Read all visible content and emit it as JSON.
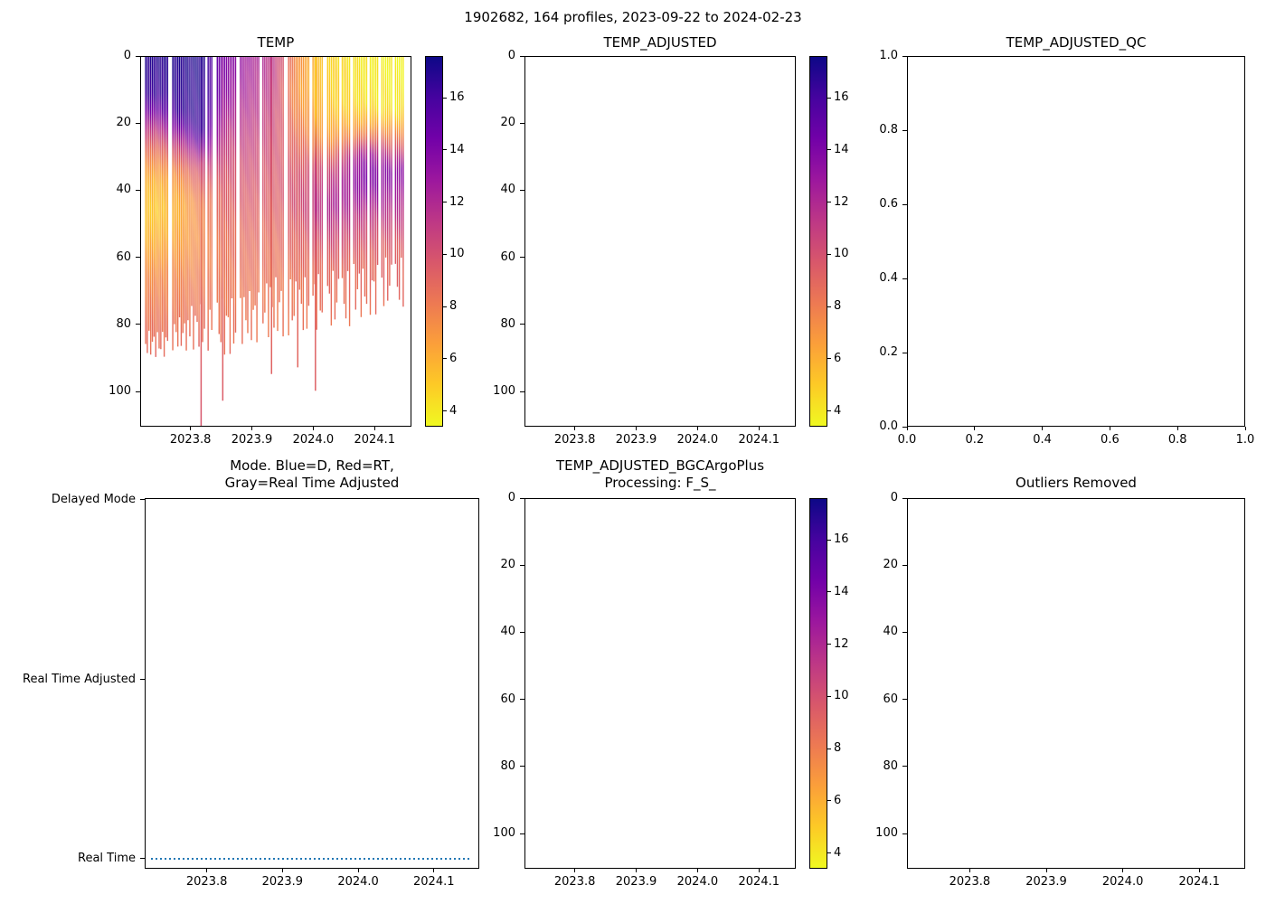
{
  "figure": {
    "suptitle": "1902682, 164 profiles, 2023-09-22 to 2024-02-23"
  },
  "colors": {
    "background": "#ffffff",
    "axis": "#000000",
    "mode_line": "#1f77b4",
    "plasma": [
      "#0d0887",
      "#46039f",
      "#7201a8",
      "#9c179e",
      "#bd3786",
      "#d8576b",
      "#ed7953",
      "#fb9f3a",
      "#fdca26",
      "#f0f921"
    ]
  },
  "panels": {
    "temp": {
      "title": "TEMP",
      "xtick_labels": [
        "2023.8",
        "2023.9",
        "2024.0",
        "2024.1"
      ],
      "ytick_labels": [
        "0",
        "20",
        "40",
        "60",
        "80",
        "100"
      ],
      "colorbar_tick_labels": [
        "16",
        "14",
        "12",
        "10",
        "8",
        "6",
        "4"
      ]
    },
    "temp_adjusted": {
      "title": "TEMP_ADJUSTED",
      "xtick_labels": [
        "2023.8",
        "2023.9",
        "2024.0",
        "2024.1"
      ],
      "ytick_labels": [
        "0",
        "20",
        "40",
        "60",
        "80",
        "100"
      ],
      "colorbar_tick_labels": [
        "16",
        "14",
        "12",
        "10",
        "8",
        "6",
        "4"
      ]
    },
    "temp_adjusted_qc": {
      "title": "TEMP_ADJUSTED_QC",
      "xtick_labels": [
        "0.0",
        "0.2",
        "0.4",
        "0.6",
        "0.8",
        "1.0"
      ],
      "ytick_labels": [
        "1.0",
        "0.8",
        "0.6",
        "0.4",
        "0.2",
        "0.0"
      ]
    },
    "mode": {
      "title_line1": "Mode. Blue=D, Red=RT,",
      "title_line2": "Gray=Real Time Adjusted",
      "xtick_labels": [
        "2023.8",
        "2023.9",
        "2024.0",
        "2024.1"
      ],
      "ytick_labels": [
        "Delayed Mode",
        "Real Time Adjusted",
        "Real Time"
      ]
    },
    "bgc": {
      "title_line1": "TEMP_ADJUSTED_BGCArgoPlus",
      "title_line2": "Processing: F_S_",
      "xtick_labels": [
        "2023.8",
        "2023.9",
        "2024.0",
        "2024.1"
      ],
      "ytick_labels": [
        "0",
        "20",
        "40",
        "60",
        "80",
        "100"
      ],
      "colorbar_tick_labels": [
        "16",
        "14",
        "12",
        "10",
        "8",
        "6",
        "4"
      ]
    },
    "outliers": {
      "title": "Outliers Removed",
      "xtick_labels": [
        "2023.8",
        "2023.9",
        "2024.0",
        "2024.1"
      ],
      "ytick_labels": [
        "0",
        "20",
        "40",
        "60",
        "80",
        "100"
      ]
    }
  },
  "chart_data": [
    {
      "panel": "temp",
      "type": "heatmap",
      "title": "TEMP",
      "platform": "1902682",
      "n_profiles": 164,
      "date_range": [
        "2023-09-22",
        "2024-02-23"
      ],
      "xlim": [
        2023.718,
        2024.16
      ],
      "ylim": [
        0,
        110.5
      ],
      "y_inverted": true,
      "xticks": [
        2023.8,
        2023.9,
        2024.0,
        2024.1
      ],
      "yticks": [
        0,
        20,
        40,
        60,
        80,
        100
      ],
      "colorbar": {
        "vmin": 3.4,
        "vmax": 17.6,
        "ticks": [
          16,
          14,
          12,
          10,
          8,
          6,
          4
        ],
        "colormap": "plasma_r"
      },
      "profile_sections": [
        {
          "t_start": 2023.7255,
          "t_end": 2023.7615,
          "count": 14,
          "zmax_range": [
            82,
            90
          ],
          "temp_vs_depth": [
            [
              0,
              16.9
            ],
            [
              13,
              16.2
            ],
            [
              20,
              12.0
            ],
            [
              27,
              8.8
            ],
            [
              36,
              6.0
            ],
            [
              46,
              5.0
            ],
            [
              56,
              6.0
            ],
            [
              66,
              7.4
            ],
            [
              78,
              8.3
            ],
            [
              90,
              8.8
            ]
          ]
        },
        {
          "t_start": 2023.77,
          "t_end": 2023.795,
          "count": 10,
          "zmax_range": [
            78,
            88
          ],
          "temp_vs_depth": [
            [
              0,
              17.0
            ],
            [
              18,
              16.4
            ],
            [
              26,
              11.2
            ],
            [
              35,
              7.4
            ],
            [
              45,
              5.9
            ],
            [
              56,
              6.6
            ],
            [
              68,
              7.8
            ],
            [
              82,
              8.5
            ],
            [
              90,
              8.8
            ]
          ]
        },
        {
          "t_start": 2023.798,
          "t_end": 2023.834,
          "count": 13,
          "zmax_range": [
            74,
            88
          ],
          "temp_vs_depth": [
            [
              0,
              17.1
            ],
            [
              23,
              16.6
            ],
            [
              32,
              10.8
            ],
            [
              43,
              7.9
            ],
            [
              54,
              7.4
            ],
            [
              66,
              7.9
            ],
            [
              80,
              8.6
            ],
            [
              92,
              9.0
            ]
          ]
        },
        {
          "t_start": 2023.843,
          "t_end": 2023.873,
          "count": 11,
          "zmax_range": [
            72,
            90
          ],
          "temp_vs_depth": [
            [
              0,
              14.0
            ],
            [
              12,
              13.2
            ],
            [
              24,
              11.0
            ],
            [
              38,
              9.6
            ],
            [
              52,
              8.7
            ],
            [
              66,
              8.2
            ],
            [
              80,
              8.4
            ],
            [
              92,
              8.8
            ]
          ]
        },
        {
          "t_start": 2023.881,
          "t_end": 2023.911,
          "count": 11,
          "zmax_range": [
            70,
            86
          ],
          "temp_vs_depth": [
            [
              0,
              12.6
            ],
            [
              14,
              11.8
            ],
            [
              28,
              10.6
            ],
            [
              42,
              9.6
            ],
            [
              56,
              8.8
            ],
            [
              70,
              8.3
            ],
            [
              86,
              8.4
            ]
          ]
        },
        {
          "t_start": 2023.918,
          "t_end": 2023.951,
          "count": 12,
          "zmax_range": [
            66,
            84
          ],
          "temp_vs_depth": [
            [
              0,
              11.4
            ],
            [
              14,
              10.8
            ],
            [
              28,
              10.0
            ],
            [
              42,
              9.4
            ],
            [
              56,
              8.6
            ],
            [
              70,
              8.2
            ],
            [
              84,
              8.2
            ]
          ]
        },
        {
          "t_start": 2023.96,
          "t_end": 2023.993,
          "count": 12,
          "zmax_range": [
            66,
            84
          ],
          "temp_vs_depth": [
            [
              0,
              7.0
            ],
            [
              10,
              6.6
            ],
            [
              20,
              7.6
            ],
            [
              32,
              9.6
            ],
            [
              44,
              10.2
            ],
            [
              56,
              9.0
            ],
            [
              68,
              8.4
            ],
            [
              84,
              8.3
            ]
          ]
        },
        {
          "t_start": 2024.0,
          "t_end": 2024.06,
          "count": 21,
          "zmax_range": [
            64,
            82
          ],
          "temp_vs_depth": [
            [
              0,
              4.6
            ],
            [
              14,
              4.9
            ],
            [
              24,
              6.5
            ],
            [
              34,
              10.5
            ],
            [
              44,
              12.3
            ],
            [
              54,
              10.4
            ],
            [
              64,
              8.8
            ],
            [
              82,
              8.4
            ]
          ]
        },
        {
          "t_start": 2024.067,
          "t_end": 2024.106,
          "count": 14,
          "zmax_range": [
            62,
            78
          ],
          "temp_vs_depth": [
            [
              0,
              3.9
            ],
            [
              14,
              4.2
            ],
            [
              22,
              7.0
            ],
            [
              30,
              13.6
            ],
            [
              38,
              14.2
            ],
            [
              48,
              11.0
            ],
            [
              60,
              9.0
            ],
            [
              78,
              8.5
            ]
          ]
        },
        {
          "t_start": 2024.113,
          "t_end": 2024.148,
          "count": 12,
          "zmax_range": [
            60,
            76
          ],
          "temp_vs_depth": [
            [
              0,
              3.7
            ],
            [
              16,
              4.0
            ],
            [
              26,
              9.0
            ],
            [
              34,
              13.8
            ],
            [
              44,
              12.0
            ],
            [
              56,
              9.4
            ],
            [
              76,
              8.6
            ]
          ]
        }
      ],
      "deep_profiles": [
        {
          "t": 2023.8165,
          "temp_vs_depth": [
            [
              0,
              16.9
            ],
            [
              22,
              16.3
            ],
            [
              32,
              10.5
            ],
            [
              46,
              8.2
            ],
            [
              60,
              8.6
            ],
            [
              80,
              9.2
            ],
            [
              110.5,
              9.8
            ]
          ]
        },
        {
          "t": 2023.852,
          "temp_vs_depth": [
            [
              0,
              13.6
            ],
            [
              20,
              11.8
            ],
            [
              40,
              9.6
            ],
            [
              62,
              8.8
            ],
            [
              84,
              9.2
            ],
            [
              103,
              9.5
            ]
          ]
        },
        {
          "t": 2023.932,
          "temp_vs_depth": [
            [
              0,
              11.0
            ],
            [
              24,
              10.2
            ],
            [
              46,
              9.2
            ],
            [
              70,
              8.8
            ],
            [
              95,
              9.2
            ]
          ]
        },
        {
          "t": 2023.975,
          "temp_vs_depth": [
            [
              0,
              6.8
            ],
            [
              18,
              7.8
            ],
            [
              36,
              9.8
            ],
            [
              58,
              8.8
            ],
            [
              93,
              9.0
            ]
          ]
        },
        {
          "t": 2024.004,
          "temp_vs_depth": [
            [
              0,
              4.7
            ],
            [
              18,
              5.2
            ],
            [
              32,
              10.8
            ],
            [
              46,
              11.6
            ],
            [
              62,
              9.0
            ],
            [
              100,
              9.3
            ]
          ]
        }
      ],
      "time_gaps": [
        [
          2023.764,
          2023.7695
        ],
        [
          2023.8245,
          2023.8275
        ],
        [
          2023.8355,
          2023.8425
        ],
        [
          2023.8745,
          2023.8805
        ],
        [
          2023.9125,
          2023.9175
        ],
        [
          2023.9525,
          2023.9595
        ],
        [
          2023.9937,
          2023.9995
        ],
        [
          2024.017,
          2024.023
        ],
        [
          2024.044,
          2024.047
        ],
        [
          2024.0605,
          2024.0665
        ],
        [
          2024.089,
          2024.093
        ],
        [
          2024.1065,
          2024.1125
        ],
        [
          2024.13,
          2024.133
        ]
      ]
    },
    {
      "panel": "temp_adjusted",
      "type": "heatmap",
      "title": "TEMP_ADJUSTED",
      "empty": true,
      "xlim": [
        2023.718,
        2024.16
      ],
      "ylim": [
        0,
        110.5
      ],
      "y_inverted": true,
      "xticks": [
        2023.8,
        2023.9,
        2024.0,
        2024.1
      ],
      "yticks": [
        0,
        20,
        40,
        60,
        80,
        100
      ],
      "colorbar": {
        "vmin": 3.4,
        "vmax": 17.6,
        "ticks": [
          16,
          14,
          12,
          10,
          8,
          6,
          4
        ],
        "colormap": "plasma_r"
      }
    },
    {
      "panel": "temp_adjusted_qc",
      "type": "scatter",
      "title": "TEMP_ADJUSTED_QC",
      "empty": true,
      "xlim": [
        0,
        1.0
      ],
      "ylim": [
        0,
        1.0
      ],
      "y_inverted": false,
      "xticks": [
        0.0,
        0.2,
        0.4,
        0.6,
        0.8,
        1.0
      ],
      "yticks": [
        1.0,
        0.8,
        0.6,
        0.4,
        0.2,
        0.0
      ]
    },
    {
      "panel": "mode",
      "type": "line",
      "title": "Mode. Blue=D, Red=RT, Gray=Real Time Adjusted",
      "xlim": [
        2023.718,
        2024.16
      ],
      "xticks": [
        2023.8,
        2023.9,
        2024.0,
        2024.1
      ],
      "categories": [
        "Delayed Mode",
        "Real Time Adjusted",
        "Real Time"
      ],
      "color_legend": {
        "blue": "D",
        "red": "RT",
        "gray": "Real Time Adjusted"
      },
      "series": [
        {
          "name": "data_mode",
          "category": "Real Time",
          "x_start": 2023.726,
          "x_end": 2024.147,
          "style": "dotted",
          "color": "#1f77b4"
        }
      ]
    },
    {
      "panel": "bgc",
      "type": "heatmap",
      "title": "TEMP_ADJUSTED_BGCArgoPlus Processing: F_S_",
      "empty": true,
      "xlim": [
        2023.718,
        2024.16
      ],
      "ylim": [
        0,
        110.5
      ],
      "y_inverted": true,
      "xticks": [
        2023.8,
        2023.9,
        2024.0,
        2024.1
      ],
      "yticks": [
        0,
        20,
        40,
        60,
        80,
        100
      ],
      "colorbar": {
        "vmin": 3.4,
        "vmax": 17.6,
        "ticks": [
          16,
          14,
          12,
          10,
          8,
          6,
          4
        ],
        "colormap": "plasma_r"
      }
    },
    {
      "panel": "outliers",
      "type": "scatter",
      "title": "Outliers Removed",
      "empty": true,
      "xlim": [
        2023.718,
        2024.16
      ],
      "ylim": [
        0,
        110.5
      ],
      "y_inverted": true,
      "xticks": [
        2023.8,
        2023.9,
        2024.0,
        2024.1
      ],
      "yticks": [
        0,
        20,
        40,
        60,
        80,
        100
      ]
    }
  ]
}
